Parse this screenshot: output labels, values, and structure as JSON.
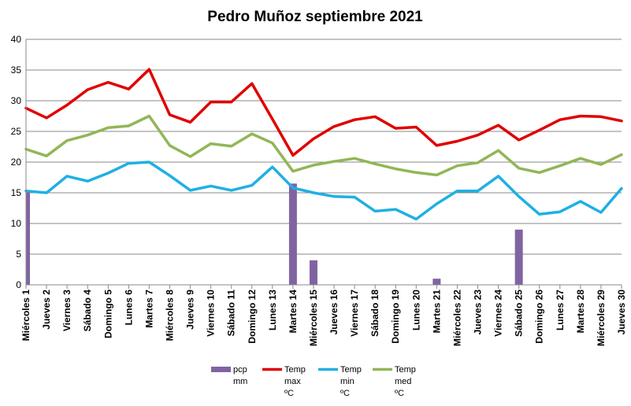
{
  "chart_data": {
    "type": "bar+line",
    "title": "Pedro Muñoz septiembre 2021",
    "xlabel": "",
    "ylabel": "",
    "ylim": [
      0,
      40
    ],
    "yticks": [
      0,
      5,
      10,
      15,
      20,
      25,
      30,
      35,
      40
    ],
    "grid": true,
    "legend_position": "bottom",
    "categories": [
      "Miércoles 1",
      "Jueves 2",
      "Viernes 3",
      "Sábado 4",
      "Domingo 5",
      "Lunes 6",
      "Martes 7",
      "Miércoles 8",
      "Jueves 9",
      "Viernes 10",
      "Sábado 11",
      "Domingo 12",
      "Lunes 13",
      "Martes 14",
      "Miércoles 15",
      "Jueves 16",
      "Viernes 17",
      "Sábado 18",
      "Domingo 19",
      "Lunes 20",
      "Martes 21",
      "Miércoles 22",
      "Jueves 23",
      "Viernes 24",
      "Sábado 25",
      "Domingo 26",
      "Lunes 27",
      "Martes 28",
      "Miércoles 29",
      "Jueves 30"
    ],
    "series": [
      {
        "name_lines": [
          "pcp",
          "mm"
        ],
        "kind": "bar",
        "color": "#8064A2",
        "values": [
          15.2,
          0,
          0,
          0,
          0,
          0,
          0,
          0,
          0,
          0,
          0,
          0,
          0,
          16.5,
          4.0,
          0,
          0,
          0,
          0,
          0,
          1.0,
          0,
          0,
          0,
          9.0,
          0,
          0,
          0,
          0,
          0
        ]
      },
      {
        "name_lines": [
          "Temp",
          "max",
          "ºC"
        ],
        "kind": "line",
        "color": "#E00000",
        "values": [
          28.8,
          27.2,
          29.3,
          31.8,
          33.0,
          31.9,
          35.1,
          27.7,
          26.5,
          29.8,
          29.8,
          32.8,
          27.0,
          21.1,
          23.8,
          25.8,
          26.9,
          27.4,
          25.5,
          25.7,
          22.7,
          23.4,
          24.4,
          26.0,
          23.6,
          25.2,
          26.9,
          27.5,
          27.4,
          26.7
        ]
      },
      {
        "name_lines": [
          "Temp",
          "min",
          "ºC"
        ],
        "kind": "line",
        "color": "#1FB0E3",
        "values": [
          15.3,
          15.0,
          17.7,
          16.9,
          18.2,
          19.8,
          20.0,
          17.8,
          15.4,
          16.1,
          15.4,
          16.2,
          19.2,
          15.8,
          15.0,
          14.4,
          14.3,
          12.0,
          12.3,
          10.7,
          13.2,
          15.3,
          15.3,
          17.7,
          14.4,
          11.5,
          11.9,
          13.6,
          11.8,
          15.7
        ]
      },
      {
        "name_lines": [
          "Temp",
          "med",
          "ºC"
        ],
        "kind": "line",
        "color": "#92B656",
        "values": [
          22.1,
          21.0,
          23.5,
          24.4,
          25.6,
          25.9,
          27.5,
          22.7,
          20.9,
          23.0,
          22.6,
          24.6,
          23.1,
          18.5,
          19.5,
          20.1,
          20.6,
          19.7,
          18.9,
          18.3,
          17.9,
          19.4,
          19.9,
          21.9,
          19.0,
          18.3,
          19.4,
          20.6,
          19.6,
          21.2
        ]
      }
    ]
  }
}
